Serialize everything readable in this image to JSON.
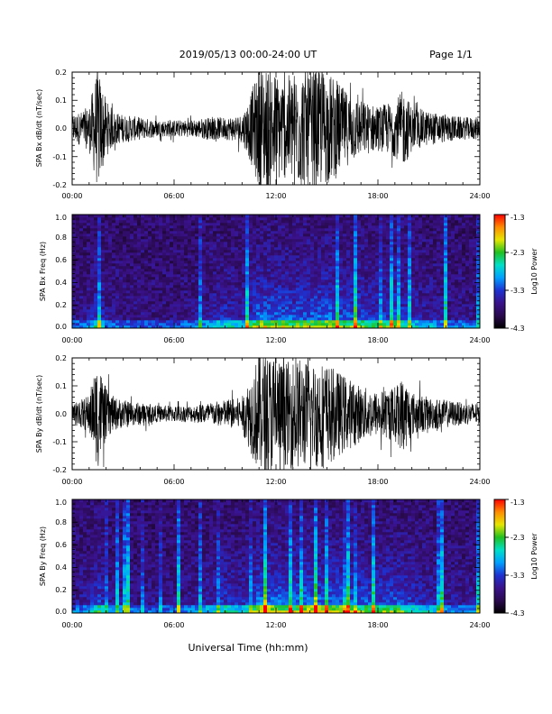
{
  "header": {
    "date_range": "2019/05/13  00:00-24:00 UT",
    "page": "Page 1/1"
  },
  "footer": {
    "xlabel": "Universal Time (hh:mm)"
  },
  "colorbar": {
    "label": "Log10 Power",
    "ticks": [
      "-1.3",
      "-2.3",
      "-3.3",
      "-4.3"
    ],
    "range": [
      -4.3,
      -1.3
    ],
    "colors": [
      "#000000",
      "#2a0a50",
      "#3a128c",
      "#1e32d2",
      "#00a0ff",
      "#00e0c8",
      "#20c020",
      "#e6e600",
      "#ff8c00",
      "#ff0000"
    ]
  },
  "chart_data": [
    {
      "type": "line",
      "ylabel": "SPA Bx dB/dt (nT/sec)",
      "xlim": [
        0,
        24
      ],
      "ylim": [
        -0.2,
        0.2
      ],
      "xticks": [
        "00:00",
        "06:00",
        "12:00",
        "18:00",
        "24:00"
      ],
      "yticks": [
        "0.2",
        "0.1",
        "0.0",
        "-0.1",
        "-0.2"
      ],
      "envelope": {
        "hours": [
          0,
          0.5,
          1,
          1.5,
          2,
          2.5,
          3,
          4,
          5,
          6,
          7,
          8,
          9,
          10,
          10.5,
          11,
          11.5,
          12,
          12.5,
          13,
          13.5,
          14,
          14.5,
          15,
          15.5,
          16,
          16.5,
          17,
          18,
          19,
          19.5,
          20,
          21,
          22,
          23,
          24
        ],
        "amplitude": [
          0.05,
          0.06,
          0.08,
          0.22,
          0.1,
          0.06,
          0.05,
          0.04,
          0.03,
          0.03,
          0.03,
          0.04,
          0.04,
          0.05,
          0.12,
          0.22,
          0.22,
          0.2,
          0.18,
          0.2,
          0.22,
          0.2,
          0.22,
          0.2,
          0.18,
          0.14,
          0.12,
          0.1,
          0.08,
          0.1,
          0.14,
          0.08,
          0.06,
          0.05,
          0.04,
          0.04
        ]
      }
    },
    {
      "type": "heatmap",
      "ylabel": "SPA Bx Freq (Hz)",
      "xlim": [
        0,
        24
      ],
      "ylim": [
        0,
        1.0
      ],
      "xticks": [
        "00:00",
        "06:00",
        "12:00",
        "18:00",
        "24:00"
      ],
      "yticks": [
        "1.0",
        "0.8",
        "0.6",
        "0.4",
        "0.2",
        "0.0"
      ],
      "value_label": "Log10 Power",
      "activity": {
        "hours": [
          0,
          1,
          1.5,
          2,
          4,
          6,
          8,
          9,
          10,
          10.5,
          11,
          12,
          13,
          14,
          15,
          16,
          17,
          18,
          19,
          20,
          21,
          22,
          24
        ],
        "level": [
          0.15,
          0.2,
          0.55,
          0.2,
          0.12,
          0.1,
          0.25,
          0.4,
          0.3,
          0.45,
          0.7,
          0.65,
          0.6,
          0.65,
          0.7,
          0.6,
          0.55,
          0.45,
          0.55,
          0.35,
          0.3,
          0.2,
          0.15
        ]
      }
    },
    {
      "type": "line",
      "ylabel": "SPA By dB/dt (nT/sec)",
      "xlim": [
        0,
        24
      ],
      "ylim": [
        -0.2,
        0.2
      ],
      "xticks": [
        "00:00",
        "06:00",
        "12:00",
        "18:00",
        "24:00"
      ],
      "yticks": [
        "0.2",
        "0.1",
        "0.0",
        "-0.1",
        "-0.2"
      ],
      "envelope": {
        "hours": [
          0,
          0.5,
          1,
          1.5,
          2,
          2.5,
          3,
          4,
          5,
          6,
          7,
          8,
          9,
          10,
          10.5,
          11,
          11.5,
          12,
          12.5,
          13,
          13.5,
          14,
          14.5,
          15,
          15.5,
          16,
          16.5,
          17,
          18,
          19,
          19.5,
          20,
          21,
          22,
          23,
          24
        ],
        "amplitude": [
          0.04,
          0.05,
          0.07,
          0.2,
          0.09,
          0.06,
          0.05,
          0.04,
          0.03,
          0.03,
          0.03,
          0.04,
          0.05,
          0.06,
          0.14,
          0.22,
          0.22,
          0.22,
          0.18,
          0.2,
          0.2,
          0.18,
          0.2,
          0.18,
          0.16,
          0.14,
          0.12,
          0.1,
          0.08,
          0.1,
          0.14,
          0.08,
          0.06,
          0.05,
          0.04,
          0.04
        ]
      }
    },
    {
      "type": "heatmap",
      "ylabel": "SPA By Freq (Hz)",
      "xlim": [
        0,
        24
      ],
      "ylim": [
        0,
        1.0
      ],
      "xticks": [
        "00:00",
        "06:00",
        "12:00",
        "18:00",
        "24:00"
      ],
      "yticks": [
        "1.0",
        "0.8",
        "0.6",
        "0.4",
        "0.2",
        "0.0"
      ],
      "value_label": "Log10 Power",
      "activity": {
        "hours": [
          0,
          1,
          1.5,
          2,
          4,
          6,
          8,
          9,
          10,
          10.5,
          11,
          12,
          13,
          14,
          15,
          16,
          17,
          18,
          19,
          20,
          21,
          22,
          24
        ],
        "level": [
          0.2,
          0.25,
          0.55,
          0.25,
          0.15,
          0.15,
          0.3,
          0.45,
          0.35,
          0.5,
          0.75,
          0.7,
          0.65,
          0.7,
          0.7,
          0.65,
          0.6,
          0.55,
          0.6,
          0.45,
          0.35,
          0.25,
          0.2
        ]
      }
    }
  ]
}
